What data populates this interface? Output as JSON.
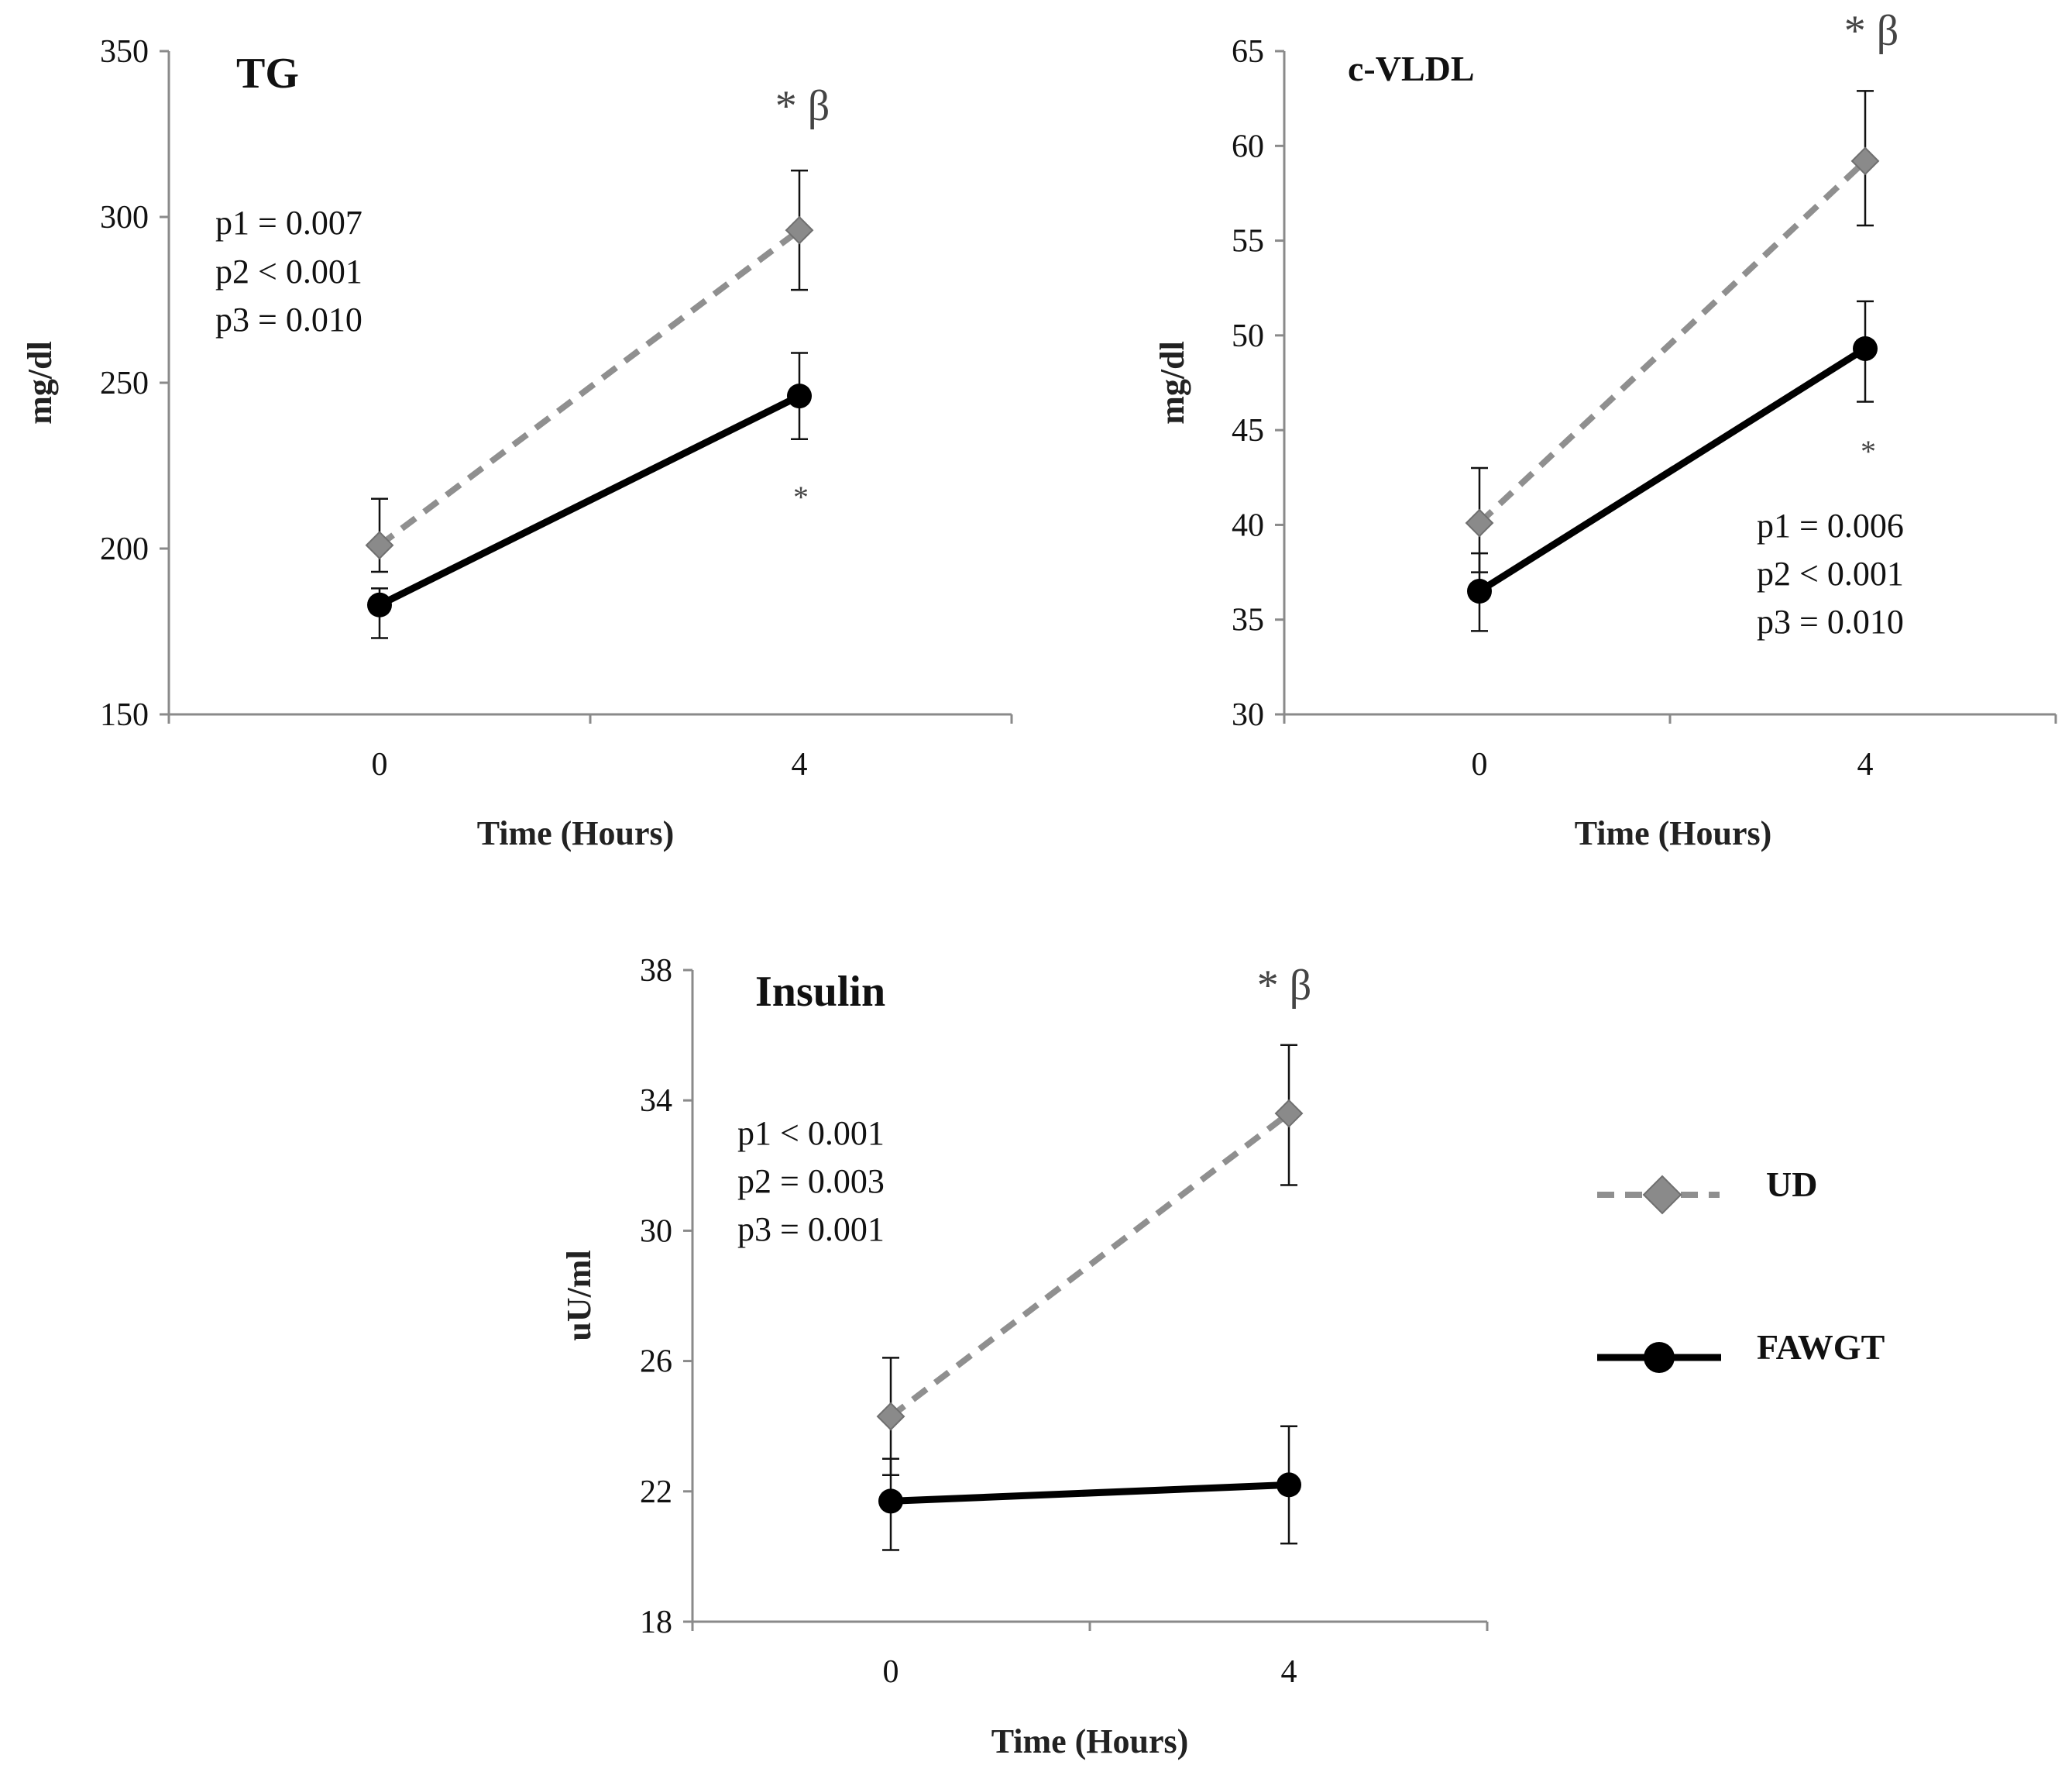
{
  "colors": {
    "ud_line": "#8f8f8f",
    "ud_marker": "#8a8a8a",
    "fawgt": "#000000",
    "axis": "#8a8a8a"
  },
  "legend": {
    "items": [
      {
        "label": "UD",
        "style": "dashed-diamond"
      },
      {
        "label": "FAWGT",
        "style": "solid-circle"
      }
    ]
  },
  "chart_data": [
    {
      "id": "tg",
      "type": "line",
      "title": "TG",
      "xlabel": "Time (Hours)",
      "ylabel": "mg/dl",
      "categories": [
        "0",
        "4"
      ],
      "ylim": [
        150,
        350
      ],
      "yticks": [
        "150",
        "200",
        "250",
        "300",
        "350"
      ],
      "series": [
        {
          "name": "UD",
          "values": [
            201,
            296
          ],
          "err_low": [
            193,
            278
          ],
          "err_high": [
            215,
            314
          ]
        },
        {
          "name": "FAWGT",
          "values": [
            183,
            246
          ],
          "err_low": [
            173,
            233
          ],
          "err_high": [
            188,
            259
          ]
        }
      ],
      "stats": [
        "p1 = 0.007",
        "p2 < 0.001",
        "p3 = 0.010"
      ],
      "sig_above": "* β",
      "sig_below": "*"
    },
    {
      "id": "cvldl",
      "type": "line",
      "title": "c-VLDL",
      "xlabel": "Time (Hours)",
      "ylabel": "mg/dl",
      "categories": [
        "0",
        "4"
      ],
      "ylim": [
        30,
        65
      ],
      "yticks": [
        "30",
        "35",
        "40",
        "45",
        "50",
        "55",
        "60",
        "65"
      ],
      "series": [
        {
          "name": "UD",
          "values": [
            40.1,
            59.2
          ],
          "err_low": [
            37.5,
            55.8
          ],
          "err_high": [
            43,
            62.9
          ]
        },
        {
          "name": "FAWGT",
          "values": [
            36.5,
            49.3
          ],
          "err_low": [
            34.4,
            46.5
          ],
          "err_high": [
            38.5,
            51.8
          ]
        }
      ],
      "stats": [
        "p1 = 0.006",
        "p2 < 0.001",
        "p3 = 0.010"
      ],
      "sig_above": "* β",
      "sig_below": "*"
    },
    {
      "id": "insulin",
      "type": "line",
      "title": "Insulin",
      "xlabel": "Time (Hours)",
      "ylabel": "uU/ml",
      "categories": [
        "0",
        "4"
      ],
      "ylim": [
        18,
        38
      ],
      "yticks": [
        "18",
        "22",
        "26",
        "30",
        "34",
        "38"
      ],
      "series": [
        {
          "name": "UD",
          "values": [
            24.3,
            33.6
          ],
          "err_low": [
            22.5,
            31.4
          ],
          "err_high": [
            26.1,
            35.7
          ]
        },
        {
          "name": "FAWGT",
          "values": [
            21.7,
            22.2
          ],
          "err_low": [
            20.2,
            20.4
          ],
          "err_high": [
            23,
            24
          ]
        }
      ],
      "stats": [
        "p1 < 0.001",
        "p2 = 0.003",
        "p3 = 0.001"
      ],
      "sig_above": "* β",
      "sig_below": ""
    }
  ]
}
